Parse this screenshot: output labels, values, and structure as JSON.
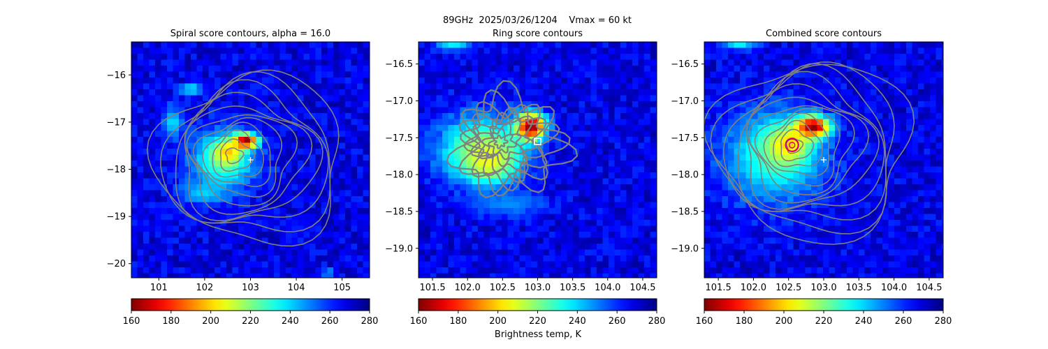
{
  "figure": {
    "suptitle": "89GHz  2025/03/26/1204    Vmax = 60 kt",
    "colorbar_label": "Brightness temp, K"
  },
  "colors": {
    "contour": "#808080",
    "center_circle": "#d0006f",
    "marker": "#ffffff",
    "axis": "#000000"
  },
  "colormap": {
    "name": "jet_r",
    "range": [
      160,
      280
    ],
    "ticks": [
      "160",
      "180",
      "200",
      "220",
      "240",
      "260",
      "280"
    ]
  },
  "chart_data": [
    {
      "type": "heatmap",
      "title": "Spiral score contours, alpha = 16.0",
      "xlim": [
        100.4,
        105.6
      ],
      "ylim": [
        -20.3,
        -15.3
      ],
      "xticks": [
        "101",
        "102",
        "103",
        "104",
        "105"
      ],
      "yticks": [
        "-16",
        "-17",
        "-18",
        "-19",
        "-20"
      ],
      "grid": false,
      "background_tb": 268,
      "blobs": [
        {
          "x": 102.4,
          "y": -17.8,
          "rx": 0.85,
          "ry": 0.75,
          "tb": 225
        },
        {
          "x": 102.5,
          "y": -17.65,
          "rx": 0.35,
          "ry": 0.3,
          "tb": 198
        },
        {
          "x": 102.9,
          "y": -17.4,
          "rx": 0.3,
          "ry": 0.18,
          "tb": 160
        },
        {
          "x": 101.7,
          "y": -16.3,
          "rx": 0.3,
          "ry": 0.12,
          "tb": 232
        },
        {
          "x": 101.3,
          "y": -17.0,
          "rx": 0.25,
          "ry": 0.4,
          "tb": 238
        },
        {
          "x": 102.0,
          "y": -18.5,
          "rx": 0.6,
          "ry": 0.3,
          "tb": 240
        },
        {
          "x": 104.7,
          "y": -20.2,
          "rx": 0.15,
          "ry": 0.1,
          "tb": 232
        }
      ],
      "contour_center": {
        "x": 102.6,
        "y": -17.7
      },
      "contour_levels": 11,
      "contour_step": 0.16,
      "markers": [
        {
          "kind": "plus",
          "x": 103.0,
          "y": -17.8
        }
      ]
    },
    {
      "type": "heatmap",
      "title": "Ring score contours",
      "xlim": [
        101.3,
        104.7
      ],
      "ylim": [
        -19.4,
        -16.2
      ],
      "xticks": [
        "101.5",
        "102.0",
        "102.5",
        "103.0",
        "103.5",
        "104.0",
        "104.5"
      ],
      "yticks": [
        "-16.5",
        "-17.0",
        "-17.5",
        "-18.0",
        "-18.5",
        "-19.0"
      ],
      "grid": false,
      "background_tb": 268,
      "blobs": [
        {
          "x": 102.2,
          "y": -17.65,
          "rx": 0.75,
          "ry": 0.55,
          "tb": 222
        },
        {
          "x": 102.3,
          "y": -17.8,
          "rx": 0.45,
          "ry": 0.35,
          "tb": 206
        },
        {
          "x": 102.9,
          "y": -17.35,
          "rx": 0.25,
          "ry": 0.22,
          "tb": 160
        },
        {
          "x": 101.8,
          "y": -16.25,
          "rx": 0.3,
          "ry": 0.08,
          "tb": 235
        },
        {
          "x": 102.6,
          "y": -18.4,
          "rx": 0.6,
          "ry": 0.2,
          "tb": 248
        }
      ],
      "contour_center": {
        "x": 102.45,
        "y": -17.55
      },
      "contour_levels": 9,
      "contour_step": 0.07,
      "markers": [
        {
          "kind": "square",
          "x": 103.0,
          "y": -17.55
        }
      ]
    },
    {
      "type": "heatmap",
      "title": "Combined score contours",
      "xlim": [
        101.3,
        104.7
      ],
      "ylim": [
        -19.4,
        -16.2
      ],
      "xticks": [
        "101.5",
        "102.0",
        "102.5",
        "103.0",
        "103.5",
        "104.0",
        "104.5"
      ],
      "yticks": [
        "-16.5",
        "-17.0",
        "-17.5",
        "-18.0",
        "-18.5",
        "-19.0"
      ],
      "grid": false,
      "background_tb": 268,
      "blobs": [
        {
          "x": 102.3,
          "y": -17.75,
          "rx": 0.85,
          "ry": 0.75,
          "tb": 228
        },
        {
          "x": 102.5,
          "y": -17.6,
          "rx": 0.35,
          "ry": 0.3,
          "tb": 200
        },
        {
          "x": 102.85,
          "y": -17.35,
          "rx": 0.28,
          "ry": 0.17,
          "tb": 160
        },
        {
          "x": 101.8,
          "y": -16.25,
          "rx": 0.3,
          "ry": 0.08,
          "tb": 235
        }
      ],
      "contour_center": {
        "x": 102.55,
        "y": -17.6
      },
      "contour_levels": 12,
      "contour_step": 0.1,
      "markers": [
        {
          "kind": "circle",
          "x": 102.55,
          "y": -17.6
        },
        {
          "kind": "plus",
          "x": 103.0,
          "y": -17.8
        }
      ]
    }
  ]
}
